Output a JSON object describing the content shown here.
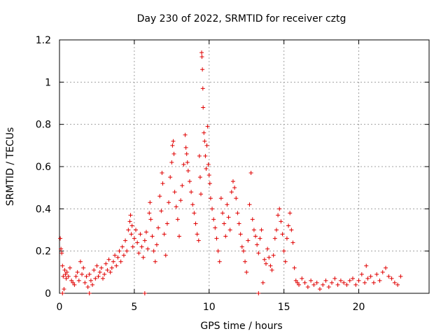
{
  "chart_data": {
    "type": "scatter",
    "title": "Day 230 of 2022, SRMTID for receiver cztg",
    "xlabel": "GPS time / hours",
    "ylabel": "SRMTID / TECUs",
    "xlim": [
      0,
      24.7
    ],
    "ylim": [
      0,
      1.2
    ],
    "x_ticks": [
      0,
      5,
      10,
      15,
      20
    ],
    "x_tick_labels": [
      "0",
      "5",
      "10",
      "15",
      "20"
    ],
    "y_ticks": [
      0,
      0.2,
      0.4,
      0.6,
      0.8,
      1.0,
      1.2
    ],
    "y_tick_labels": [
      "0",
      "0.2",
      "0.4",
      "0.6",
      "0.8",
      "1",
      "1.2"
    ],
    "grid": true,
    "marker": "+",
    "color": "#e00000",
    "series": [
      {
        "name": "SRMTID",
        "points": [
          [
            0.05,
            0.26
          ],
          [
            0.1,
            0.21
          ],
          [
            0.15,
            0.19
          ],
          [
            0.2,
            0.13
          ],
          [
            0.25,
            0.08
          ],
          [
            0.3,
            0.02
          ],
          [
            0.35,
            0.11
          ],
          [
            0.4,
            0.09
          ],
          [
            0.45,
            0.07
          ],
          [
            0.5,
            0.1
          ],
          [
            0.6,
            0.08
          ],
          [
            0.7,
            0.12
          ],
          [
            0.8,
            0.06
          ],
          [
            0.9,
            0.05
          ],
          [
            1.0,
            0.04
          ],
          [
            1.1,
            0.08
          ],
          [
            1.2,
            0.1
          ],
          [
            1.3,
            0.06
          ],
          [
            1.4,
            0.15
          ],
          [
            1.5,
            0.09
          ],
          [
            1.6,
            0.12
          ],
          [
            1.7,
            0.05
          ],
          [
            1.8,
            0.08
          ],
          [
            1.9,
            0.03
          ],
          [
            2.0,
            0.09
          ],
          [
            2.1,
            0.06
          ],
          [
            2.2,
            0.04
          ],
          [
            2.3,
            0.11
          ],
          [
            2.4,
            0.07
          ],
          [
            2.5,
            0.13
          ],
          [
            2.6,
            0.08
          ],
          [
            2.7,
            0.1
          ],
          [
            2.8,
            0.12
          ],
          [
            2.9,
            0.07
          ],
          [
            3.0,
            0.09
          ],
          [
            3.1,
            0.14
          ],
          [
            3.2,
            0.11
          ],
          [
            3.3,
            0.16
          ],
          [
            3.4,
            0.1
          ],
          [
            3.5,
            0.12
          ],
          [
            3.6,
            0.15
          ],
          [
            3.7,
            0.18
          ],
          [
            3.8,
            0.13
          ],
          [
            3.9,
            0.17
          ],
          [
            4.0,
            0.2
          ],
          [
            4.1,
            0.15
          ],
          [
            4.2,
            0.22
          ],
          [
            4.3,
            0.18
          ],
          [
            4.4,
            0.25
          ],
          [
            4.5,
            0.2
          ],
          [
            4.6,
            0.3
          ],
          [
            4.7,
            0.34
          ],
          [
            4.75,
            0.37
          ],
          [
            4.8,
            0.28
          ],
          [
            4.85,
            0.32
          ],
          [
            4.9,
            0.22
          ],
          [
            5.0,
            0.26
          ],
          [
            5.1,
            0.3
          ],
          [
            5.2,
            0.24
          ],
          [
            5.3,
            0.19
          ],
          [
            5.4,
            0.28
          ],
          [
            5.5,
            0.22
          ],
          [
            5.6,
            0.17
          ],
          [
            5.7,
            0.25
          ],
          [
            5.8,
            0.29
          ],
          [
            5.9,
            0.21
          ],
          [
            6.0,
            0.38
          ],
          [
            6.05,
            0.43
          ],
          [
            6.1,
            0.35
          ],
          [
            6.2,
            0.27
          ],
          [
            6.3,
            0.2
          ],
          [
            6.4,
            0.15
          ],
          [
            6.5,
            0.23
          ],
          [
            6.6,
            0.31
          ],
          [
            6.7,
            0.46
          ],
          [
            6.8,
            0.39
          ],
          [
            6.85,
            0.57
          ],
          [
            6.9,
            0.52
          ],
          [
            7.0,
            0.28
          ],
          [
            7.1,
            0.18
          ],
          [
            7.2,
            0.33
          ],
          [
            7.3,
            0.43
          ],
          [
            7.4,
            0.55
          ],
          [
            7.5,
            0.62
          ],
          [
            7.55,
            0.7
          ],
          [
            7.6,
            0.72
          ],
          [
            7.65,
            0.66
          ],
          [
            7.7,
            0.48
          ],
          [
            7.8,
            0.41
          ],
          [
            7.9,
            0.35
          ],
          [
            8.0,
            0.27
          ],
          [
            8.1,
            0.44
          ],
          [
            8.2,
            0.51
          ],
          [
            8.3,
            0.61
          ],
          [
            8.4,
            0.75
          ],
          [
            8.45,
            0.69
          ],
          [
            8.5,
            0.66
          ],
          [
            8.55,
            0.62
          ],
          [
            8.6,
            0.58
          ],
          [
            8.7,
            0.53
          ],
          [
            8.8,
            0.48
          ],
          [
            8.9,
            0.42
          ],
          [
            9.0,
            0.38
          ],
          [
            9.1,
            0.33
          ],
          [
            9.2,
            0.28
          ],
          [
            9.3,
            0.25
          ],
          [
            9.35,
            0.65
          ],
          [
            9.4,
            0.55
          ],
          [
            9.45,
            0.47
          ],
          [
            9.5,
            1.14
          ],
          [
            9.52,
            1.12
          ],
          [
            9.55,
            1.06
          ],
          [
            9.58,
            0.97
          ],
          [
            9.6,
            0.88
          ],
          [
            9.65,
            0.76
          ],
          [
            9.7,
            0.72
          ],
          [
            9.75,
            0.65
          ],
          [
            9.8,
            0.59
          ],
          [
            9.85,
            0.7
          ],
          [
            9.9,
            0.79
          ],
          [
            9.95,
            0.61
          ],
          [
            10.0,
            0.56
          ],
          [
            10.05,
            0.52
          ],
          [
            10.1,
            0.45
          ],
          [
            10.2,
            0.4
          ],
          [
            10.3,
            0.35
          ],
          [
            10.4,
            0.31
          ],
          [
            10.5,
            0.26
          ],
          [
            10.6,
            0.2
          ],
          [
            10.7,
            0.15
          ],
          [
            10.8,
            0.45
          ],
          [
            10.9,
            0.38
          ],
          [
            11.0,
            0.33
          ],
          [
            11.1,
            0.27
          ],
          [
            11.2,
            0.42
          ],
          [
            11.3,
            0.36
          ],
          [
            11.4,
            0.3
          ],
          [
            11.5,
            0.48
          ],
          [
            11.6,
            0.53
          ],
          [
            11.7,
            0.5
          ],
          [
            11.8,
            0.45
          ],
          [
            11.9,
            0.38
          ],
          [
            12.0,
            0.33
          ],
          [
            12.1,
            0.28
          ],
          [
            12.2,
            0.22
          ],
          [
            12.3,
            0.2
          ],
          [
            12.4,
            0.15
          ],
          [
            12.5,
            0.1
          ],
          [
            12.6,
            0.25
          ],
          [
            12.7,
            0.42
          ],
          [
            12.8,
            0.57
          ],
          [
            12.9,
            0.35
          ],
          [
            13.0,
            0.3
          ],
          [
            13.1,
            0.27
          ],
          [
            13.2,
            0.23
          ],
          [
            13.3,
            0.19
          ],
          [
            13.4,
            0.26
          ],
          [
            13.5,
            0.3
          ],
          [
            13.6,
            0.05
          ],
          [
            13.7,
            0.16
          ],
          [
            13.8,
            0.14
          ],
          [
            13.9,
            0.21
          ],
          [
            14.0,
            0.17
          ],
          [
            14.1,
            0.13
          ],
          [
            14.2,
            0.11
          ],
          [
            14.3,
            0.18
          ],
          [
            14.4,
            0.26
          ],
          [
            14.5,
            0.3
          ],
          [
            14.6,
            0.37
          ],
          [
            14.7,
            0.4
          ],
          [
            14.8,
            0.34
          ],
          [
            14.9,
            0.28
          ],
          [
            15.0,
            0.2
          ],
          [
            15.1,
            0.15
          ],
          [
            15.2,
            0.26
          ],
          [
            15.3,
            0.32
          ],
          [
            15.4,
            0.38
          ],
          [
            15.5,
            0.3
          ],
          [
            15.6,
            0.24
          ],
          [
            15.7,
            0.12
          ],
          [
            15.8,
            0.06
          ],
          [
            15.9,
            0.05
          ],
          [
            16.0,
            0.04
          ],
          [
            16.2,
            0.07
          ],
          [
            16.4,
            0.05
          ],
          [
            16.6,
            0.03
          ],
          [
            16.8,
            0.06
          ],
          [
            17.0,
            0.04
          ],
          [
            17.2,
            0.05
          ],
          [
            17.4,
            0.02
          ],
          [
            17.6,
            0.04
          ],
          [
            17.8,
            0.06
          ],
          [
            18.0,
            0.03
          ],
          [
            18.2,
            0.05
          ],
          [
            18.4,
            0.07
          ],
          [
            18.6,
            0.04
          ],
          [
            18.8,
            0.06
          ],
          [
            19.0,
            0.05
          ],
          [
            19.2,
            0.04
          ],
          [
            19.4,
            0.06
          ],
          [
            19.6,
            0.07
          ],
          [
            19.8,
            0.04
          ],
          [
            20.0,
            0.06
          ],
          [
            20.2,
            0.09
          ],
          [
            20.4,
            0.05
          ],
          [
            20.5,
            0.13
          ],
          [
            20.6,
            0.07
          ],
          [
            20.8,
            0.08
          ],
          [
            21.0,
            0.05
          ],
          [
            21.2,
            0.09
          ],
          [
            21.4,
            0.06
          ],
          [
            21.6,
            0.1
          ],
          [
            21.8,
            0.12
          ],
          [
            22.0,
            0.08
          ],
          [
            22.2,
            0.07
          ],
          [
            22.4,
            0.05
          ],
          [
            22.6,
            0.04
          ],
          [
            22.8,
            0.08
          ],
          [
            0.2,
            0.0
          ],
          [
            2.0,
            0.0
          ],
          [
            5.7,
            0.0
          ],
          [
            13.3,
            0.0
          ]
        ]
      }
    ]
  }
}
